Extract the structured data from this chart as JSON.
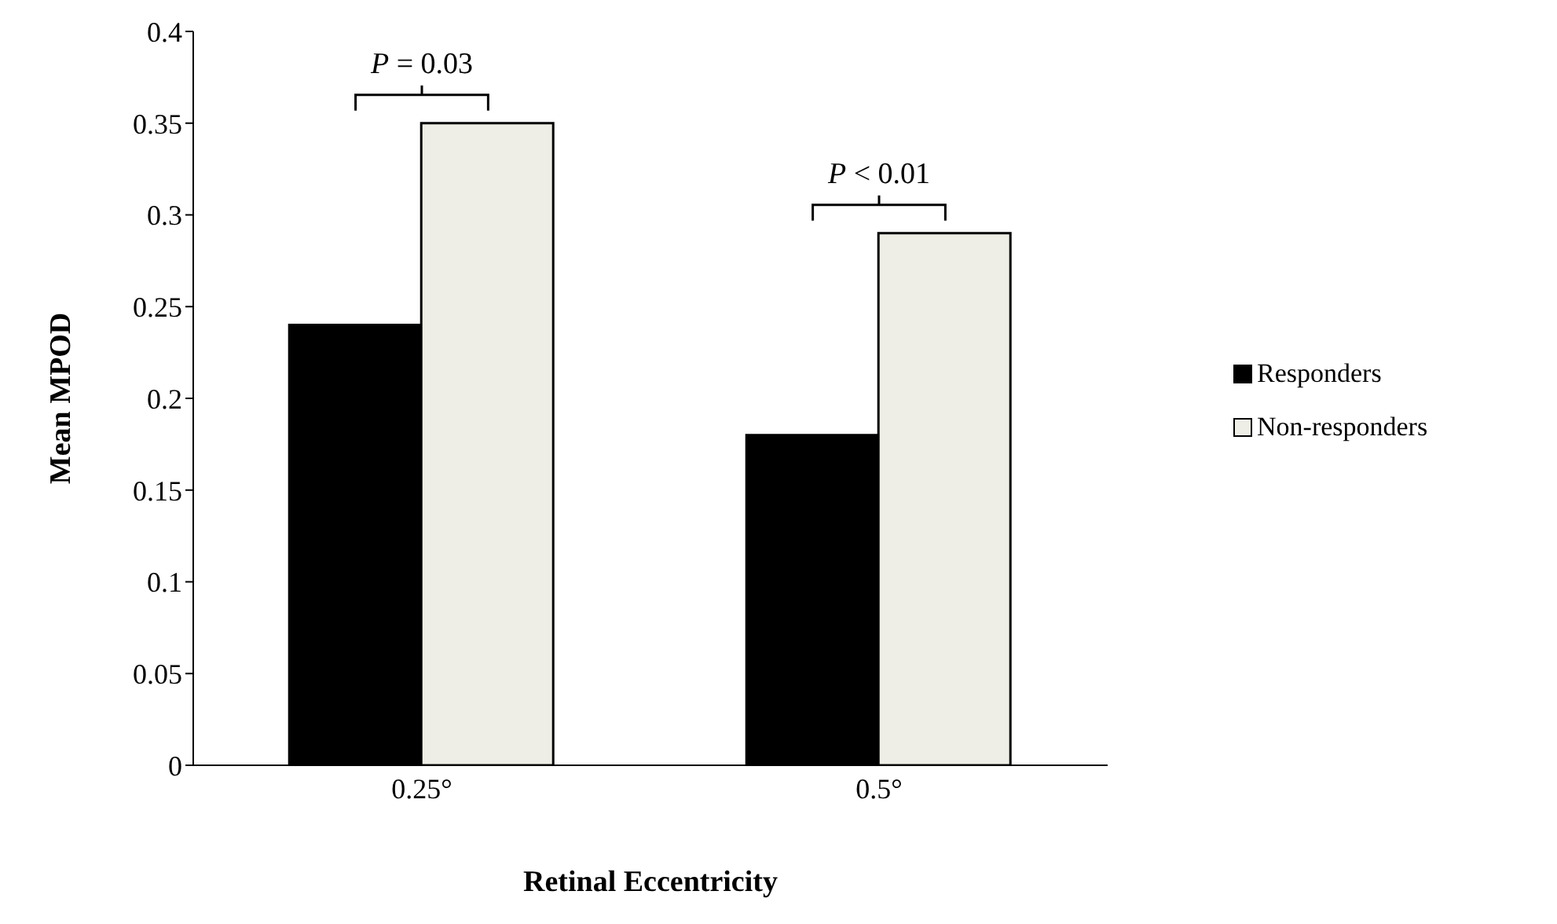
{
  "chart_data": {
    "type": "bar",
    "xlabel": "Retinal Eccentricity",
    "ylabel": "Mean MPOD",
    "categories": [
      "0.25°",
      "0.5°"
    ],
    "series": [
      {
        "name": "Responders",
        "color": "#000000",
        "values": [
          0.24,
          0.18
        ]
      },
      {
        "name": "Non-responders",
        "color": "#eeeee6",
        "values": [
          0.35,
          0.29
        ]
      }
    ],
    "ylim": [
      0,
      0.4
    ],
    "yticks": [
      0,
      0.05,
      0.1,
      0.15,
      0.2,
      0.25,
      0.3,
      0.35,
      0.4
    ],
    "grid": false,
    "legend": "right",
    "annotations": [
      "P = 0.03",
      "P < 0.01"
    ]
  }
}
